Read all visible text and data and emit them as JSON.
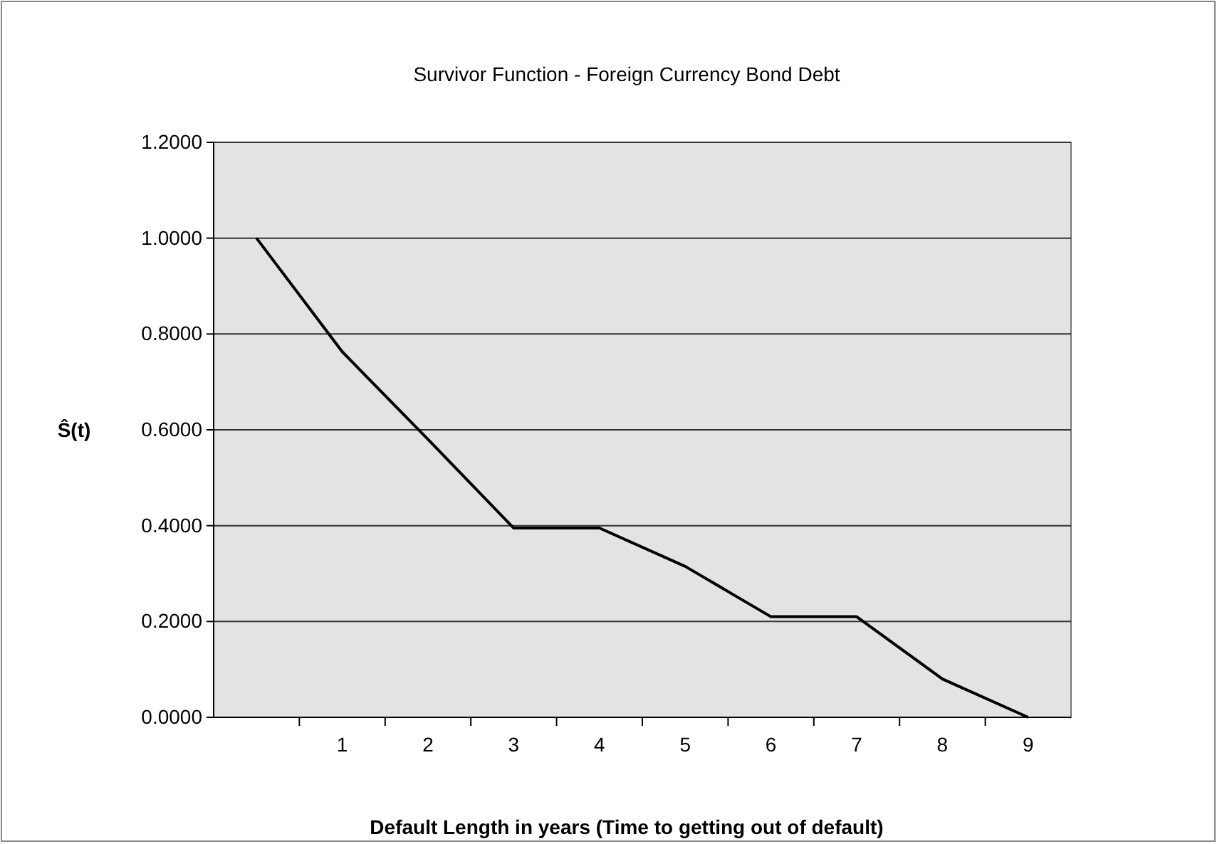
{
  "chart_data": {
    "type": "line",
    "title": "Survivor Function - Foreign Currency Bond Debt",
    "xlabel": "Default Length in years (Time to getting out of default)",
    "ylabel": "Ŝ(t)",
    "categories": [
      null,
      "1",
      "2",
      "3",
      "4",
      "5",
      "6",
      "7",
      "8",
      "9"
    ],
    "series": [
      {
        "color": "#000000",
        "values": [
          1.0,
          0.763,
          0.58,
          0.395,
          0.395,
          0.315,
          0.21,
          0.21,
          0.08,
          0
        ]
      }
    ],
    "ylim": [
      0,
      1.2
    ],
    "yticks": [
      {
        "value": 0,
        "label": "0.0000"
      },
      {
        "value": 0.2,
        "label": "0.2000"
      },
      {
        "value": 0.4,
        "label": "0.4000"
      },
      {
        "value": 0.6,
        "label": "0.6000"
      },
      {
        "value": 0.8,
        "label": "0.8000"
      },
      {
        "value": 1.0,
        "label": "1.0000"
      },
      {
        "value": 1.2,
        "label": "1.2000"
      }
    ],
    "grid": "y",
    "marker": "none",
    "line_style": "solid"
  }
}
